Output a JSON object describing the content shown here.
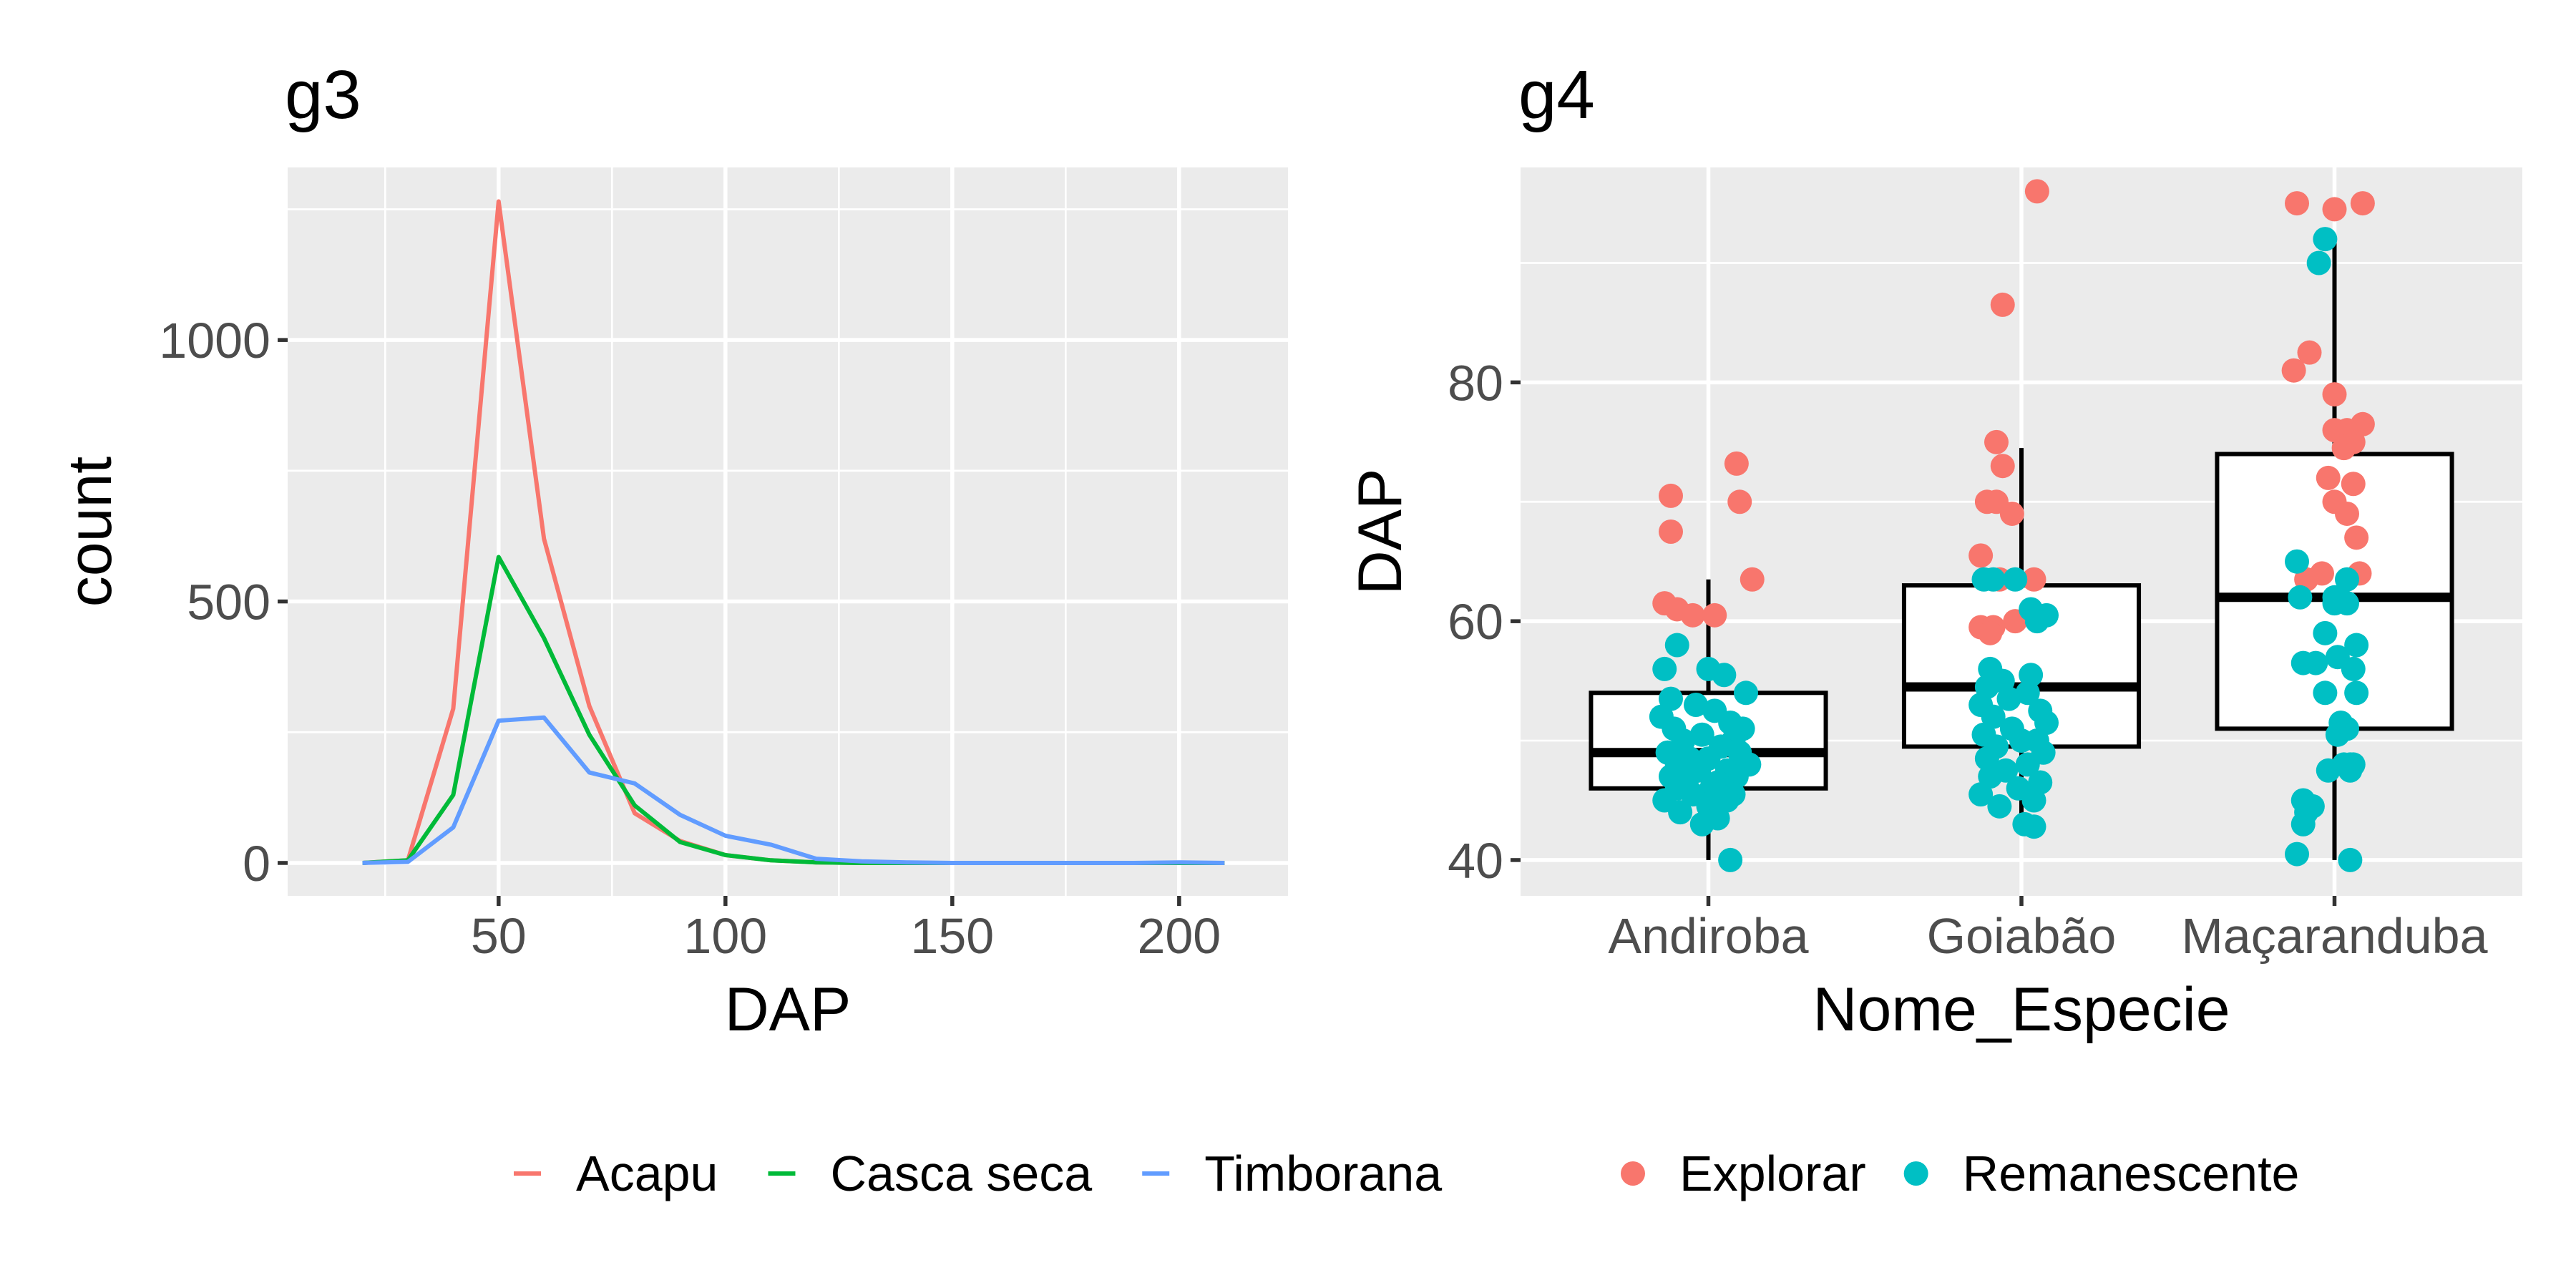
{
  "chart_data": [
    {
      "type": "line",
      "title": "g3",
      "xlabel": "DAP",
      "ylabel": "count",
      "xlim": [
        3.5,
        224
      ],
      "ylim": [
        -63,
        1330
      ],
      "x_ticks": [
        50,
        100,
        150,
        200
      ],
      "y_ticks": [
        0,
        500,
        1000
      ],
      "x_tick_labels": [
        "50",
        "100",
        "150",
        "200"
      ],
      "y_tick_labels": [
        "0",
        "500",
        "1000"
      ],
      "grid": true,
      "legend": "bottom",
      "series": [
        {
          "name": "Acapu",
          "color": "#F8766D",
          "x": [
            20,
            30,
            40,
            50,
            60,
            70,
            80,
            90,
            100,
            110,
            120,
            130,
            140,
            150,
            160,
            170,
            180,
            190,
            200,
            210
          ],
          "y": [
            0,
            5,
            295,
            1265,
            620,
            300,
            95,
            42,
            15,
            5,
            1,
            0,
            0,
            0,
            0,
            0,
            0,
            0,
            0,
            0
          ]
        },
        {
          "name": "Casca seca",
          "color": "#00BA38",
          "x": [
            20,
            30,
            40,
            50,
            60,
            70,
            80,
            90,
            100,
            110,
            120,
            130,
            140,
            150,
            160,
            170,
            180,
            190,
            200,
            210
          ],
          "y": [
            0,
            5,
            130,
            585,
            430,
            245,
            110,
            40,
            15,
            5,
            1,
            0,
            0,
            0,
            0,
            0,
            0,
            0,
            0,
            0
          ]
        },
        {
          "name": "Timborana",
          "color": "#619CFF",
          "x": [
            20,
            30,
            40,
            50,
            60,
            70,
            80,
            90,
            100,
            110,
            120,
            130,
            140,
            150,
            160,
            170,
            180,
            190,
            200,
            210
          ],
          "y": [
            0,
            2,
            68,
            272,
            278,
            173,
            152,
            92,
            52,
            35,
            8,
            3,
            1,
            0,
            0,
            0,
            0,
            0,
            1,
            0
          ]
        }
      ]
    },
    {
      "type": "box+scatter",
      "title": "g4",
      "xlabel": "Nome_Especie",
      "ylabel": "DAP",
      "categories": [
        "Andiroba",
        "Goiabão",
        "Maçaranduba"
      ],
      "ylim": [
        37,
        98
      ],
      "y_ticks": [
        40,
        60,
        80
      ],
      "y_tick_labels": [
        "40",
        "60",
        "80"
      ],
      "grid": true,
      "legend": "bottom",
      "boxes": [
        {
          "category": "Andiroba",
          "min": 40,
          "q1": 46,
          "median": 49,
          "q3": 54,
          "max": 63.5
        },
        {
          "category": "Goiabão",
          "min": 43,
          "q1": 49.5,
          "median": 54.5,
          "q3": 63,
          "max": 74.5
        },
        {
          "category": "Maçaranduba",
          "min": 40,
          "q1": 51,
          "median": 62,
          "q3": 74,
          "max": 92
        }
      ],
      "groups": [
        {
          "name": "Explorar",
          "color": "#F8766D"
        },
        {
          "name": "Remanescente",
          "color": "#00BFC4"
        }
      ],
      "points": [
        {
          "category": "Andiroba",
          "group": "Explorar",
          "x_offset": [
            -0.12,
            0.09,
            -0.12,
            0.1,
            0.14,
            -0.14,
            -0.1,
            -0.05,
            0.02
          ],
          "y": [
            70.5,
            73.2,
            67.5,
            70,
            63.5,
            61.5,
            61,
            60.5,
            60.5
          ]
        },
        {
          "category": "Andiroba",
          "group": "Remanescente",
          "x_offset": [
            -0.1,
            0.0,
            -0.14,
            0.05,
            0.12,
            -0.12,
            -0.04,
            0.02,
            -0.15,
            0.07,
            -0.11,
            0.11,
            -0.02,
            0.08,
            -0.08,
            0.04,
            -0.13,
            0.1,
            0.0,
            -0.06,
            0.13,
            -0.1,
            0.06,
            -0.03,
            -0.12,
            0.09,
            0.03,
            -0.07,
            0.01,
            -0.1,
            0.08,
            -0.05,
            0.06,
            -0.14,
            0.0,
            -0.09,
            0.03,
            -0.02,
            0.07
          ],
          "y": [
            58,
            56,
            56,
            55.5,
            54,
            53.5,
            53,
            52.5,
            52,
            51.5,
            51,
            51,
            50.5,
            50,
            50,
            49.5,
            49,
            49,
            48.5,
            48.5,
            48,
            48,
            47.5,
            47.5,
            47,
            47,
            46.5,
            46.5,
            46,
            46,
            45.5,
            45.5,
            45,
            45,
            44.5,
            44,
            43.5,
            43,
            40
          ]
        },
        {
          "category": "Goiabão",
          "group": "Explorar",
          "x_offset": [
            0.05,
            -0.06,
            -0.08,
            -0.06,
            -0.11,
            -0.08,
            -0.03,
            -0.13,
            0.04,
            -0.07,
            -0.02,
            -0.13,
            -0.09,
            -0.1
          ],
          "y": [
            96,
            86.5,
            75,
            73,
            70,
            70,
            69,
            65.5,
            63.5,
            63.5,
            60,
            59.5,
            59.5,
            59
          ]
        },
        {
          "category": "Goiabão",
          "group": "Remanescente",
          "x_offset": [
            -0.09,
            -0.02,
            -0.12,
            0.03,
            0.08,
            0.05,
            -0.1,
            0.03,
            -0.06,
            -0.11,
            0.02,
            -0.04,
            -0.13,
            0.06,
            -0.09,
            0.08,
            -0.03,
            -0.12,
            0.05,
            0.0,
            -0.08,
            0.07,
            -0.11,
            0.02,
            -0.05,
            -0.1,
            0.06,
            -0.01,
            -0.13,
            0.04,
            -0.07,
            0.01,
            0.04
          ],
          "y": [
            63.5,
            63.5,
            63.5,
            61,
            60.5,
            60,
            56,
            55.5,
            55,
            54.5,
            54,
            53.5,
            53,
            52.5,
            52,
            51.5,
            51,
            50.5,
            50,
            50,
            49.5,
            49,
            48.5,
            48,
            47.5,
            47,
            46.5,
            46,
            45.5,
            45,
            44.5,
            43,
            42.8
          ]
        },
        {
          "category": "Maçaranduba",
          "group": "Explorar",
          "x_offset": [
            -0.12,
            0.0,
            0.09,
            -0.08,
            0.0,
            -0.13,
            0.0,
            0.04,
            0.09,
            0.06,
            0.03,
            -0.02,
            0.06,
            0.0,
            0.04,
            0.07,
            -0.04,
            0.08,
            -0.09
          ],
          "y": [
            95,
            94.5,
            95,
            82.5,
            79,
            81,
            76,
            76,
            76.5,
            75,
            74.5,
            72,
            71.5,
            70,
            69,
            67,
            64,
            64,
            63.5
          ]
        },
        {
          "category": "Maçaranduba",
          "group": "Remanescente",
          "x_offset": [
            -0.03,
            -0.05,
            -0.12,
            0.04,
            0.0,
            -0.11,
            0.04,
            0.0,
            -0.03,
            0.07,
            0.01,
            -0.06,
            -0.1,
            0.06,
            -0.03,
            0.07,
            0.02,
            0.04,
            0.01,
            0.03,
            -0.02,
            0.05,
            0.06,
            -0.1,
            -0.07,
            -0.09,
            0.05,
            -0.1,
            0.05,
            -0.12
          ],
          "y": [
            92,
            90,
            65,
            63.5,
            62,
            62,
            61.5,
            61.5,
            59,
            58,
            57,
            56.5,
            56.5,
            56,
            54,
            54,
            51.5,
            51,
            50.5,
            48,
            47.5,
            47.5,
            48,
            45,
            44.5,
            44,
            48,
            43,
            40,
            40.5
          ]
        }
      ]
    }
  ]
}
